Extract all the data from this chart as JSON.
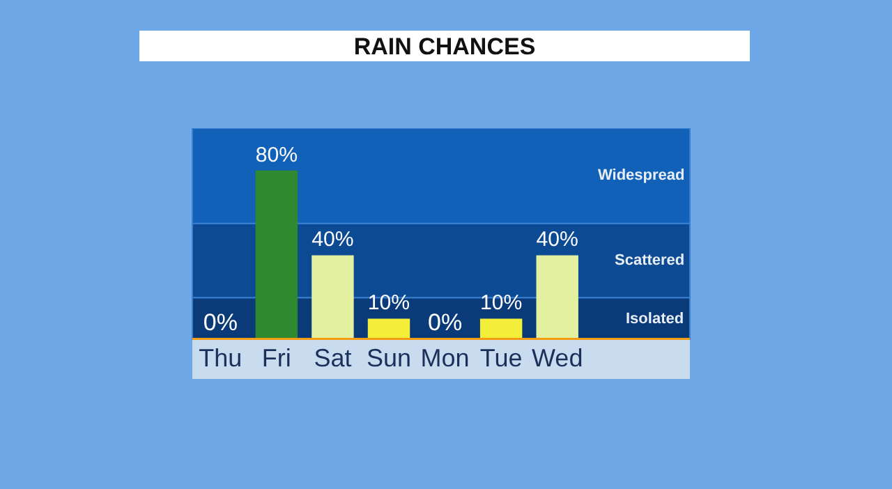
{
  "chart_data": {
    "type": "bar",
    "title": "RAIN CHANCES",
    "categories": [
      "Thu",
      "Fri",
      "Sat",
      "Sun",
      "Mon",
      "Tue",
      "Wed"
    ],
    "values": [
      0,
      80,
      40,
      10,
      0,
      10,
      40
    ],
    "colors": [
      "#f2ee3a",
      "#2f8a2f",
      "#e2f0a0",
      "#f2ee3a",
      "#f2ee3a",
      "#f2ee3a",
      "#e2f0a0"
    ],
    "value_labels": [
      "0%",
      "80%",
      "40%",
      "10%",
      "0%",
      "10%",
      "40%"
    ],
    "ylim": [
      0,
      100
    ],
    "tick_labels": "x",
    "grid": false,
    "bands": [
      {
        "axis": "y",
        "from": 0,
        "to": 20,
        "label": "Isolated",
        "color": "#0a3a78"
      },
      {
        "axis": "y",
        "from": 20,
        "to": 55,
        "label": "Scattered",
        "color": "#0c4a94"
      },
      {
        "axis": "y",
        "from": 55,
        "to": 100,
        "label": "Widespread",
        "color": "#1261b8"
      }
    ]
  }
}
